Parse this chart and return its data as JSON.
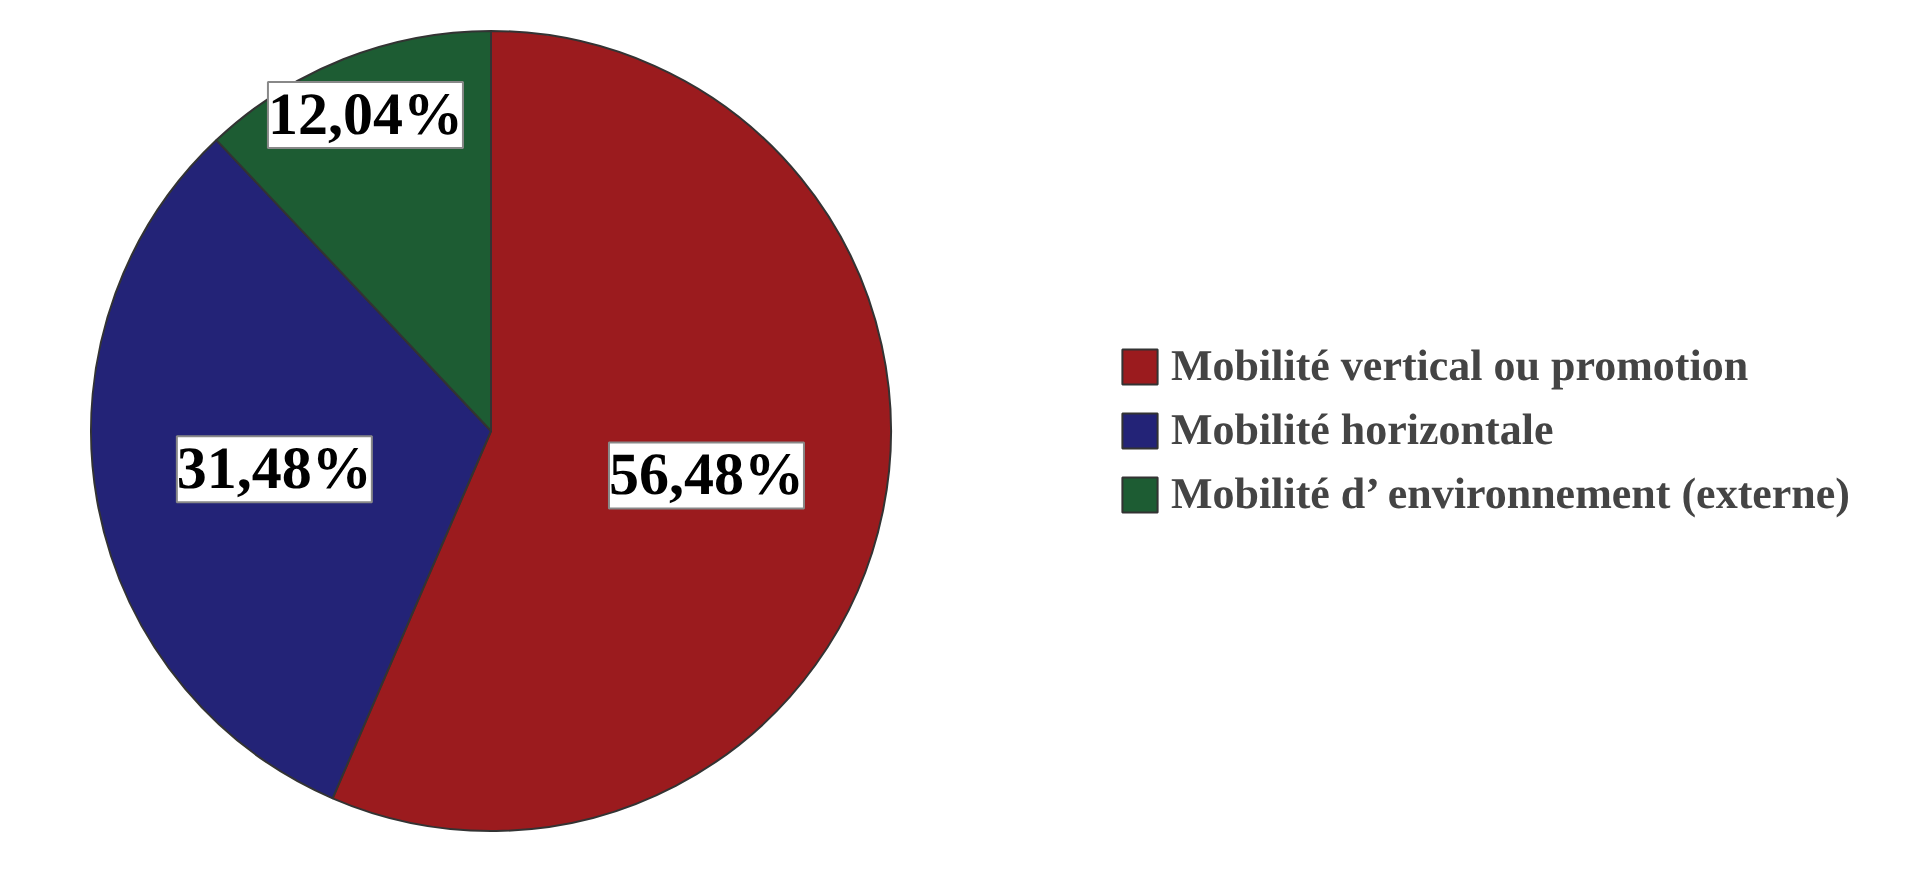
{
  "chart_data": {
    "type": "pie",
    "categories": [
      "Mobilité vertical ou promotion",
      "Mobilité horizontale",
      "Mobilité d’ environnement (externe)"
    ],
    "values": [
      56.48,
      31.48,
      12.04
    ],
    "colors": [
      "#9b1b1e",
      "#232377",
      "#1d5c33"
    ],
    "value_labels": [
      "56,48%",
      "31,48%",
      "12,04%"
    ],
    "legend": "right"
  }
}
